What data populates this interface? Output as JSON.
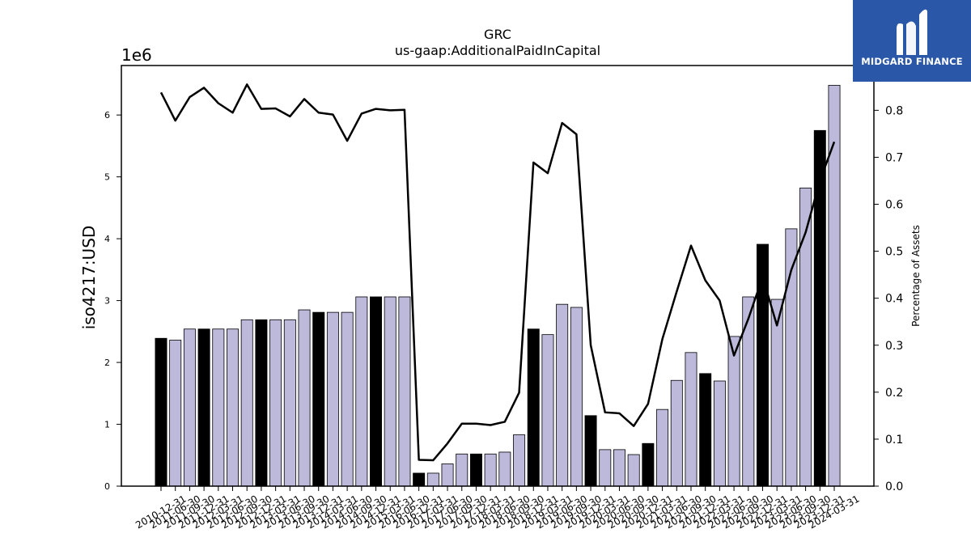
{
  "chart_data": {
    "type": "bar",
    "title": "GRC",
    "subtitle": "us-gaap:AdditionalPaidInCapital",
    "ylabel": "iso4217:USD",
    "y2label": "Percentage of Assets",
    "y_offset_label": "1e6",
    "ylim": [
      0,
      6800000
    ],
    "y2lim": [
      0,
      0.8953
    ],
    "y_ticks": [
      0,
      1,
      2,
      3,
      4,
      5,
      6
    ],
    "y2_ticks": [
      "0.0",
      "0.1",
      "0.2",
      "0.3",
      "0.4",
      "0.5",
      "0.6",
      "0.7",
      "0.8"
    ],
    "categories": [
      "2010-12-31",
      "2011-06-30",
      "2011-09-30",
      "2011-12-31",
      "2012-03-31",
      "2012-06-30",
      "2012-09-30",
      "2012-12-31",
      "2013-03-31",
      "2013-06-30",
      "2013-09-30",
      "2013-12-31",
      "2014-03-31",
      "2014-06-30",
      "2014-09-30",
      "2014-12-31",
      "2015-03-31",
      "2016-06-30",
      "2016-12-31",
      "2017-03-31",
      "2017-06-30",
      "2017-09-30",
      "2017-12-31",
      "2018-03-31",
      "2018-06-30",
      "2018-09-30",
      "2018-12-31",
      "2019-03-31",
      "2019-06-30",
      "2019-09-30",
      "2019-12-31",
      "2020-03-31",
      "2020-06-30",
      "2020-09-30",
      "2020-12-31",
      "2021-03-31",
      "2021-06-30",
      "2021-09-30",
      "2021-12-31",
      "2022-03-31",
      "2022-06-30",
      "2022-09-30",
      "2022-12-31",
      "2023-03-31",
      "2023-06-30",
      "2023-09-30",
      "2023-12-31",
      "2024-03-31"
    ],
    "series": [
      {
        "type": "bar",
        "values": [
          2390000,
          2360000,
          2540000,
          2540000,
          2540000,
          2540000,
          2690000,
          2690000,
          2690000,
          2690000,
          2850000,
          2810000,
          2810000,
          2810000,
          3060000,
          3060000,
          3060000,
          3060000,
          210000,
          210000,
          360000,
          520000,
          520000,
          520000,
          550000,
          830000,
          2540000,
          2450000,
          2940000,
          2890000,
          1140000,
          590000,
          590000,
          510000,
          690000,
          1240000,
          1710000,
          2160000,
          1820000,
          1700000,
          2420000,
          3060000,
          3910000,
          3020000,
          4160000,
          4820000,
          5750000,
          6480000
        ],
        "highlight": [
          true,
          false,
          false,
          true,
          false,
          false,
          false,
          true,
          false,
          false,
          false,
          true,
          false,
          false,
          false,
          true,
          false,
          false,
          true,
          false,
          false,
          false,
          true,
          false,
          false,
          false,
          true,
          false,
          false,
          false,
          true,
          false,
          false,
          false,
          true,
          false,
          false,
          false,
          true,
          false,
          false,
          false,
          true,
          false,
          false,
          false,
          true,
          false
        ],
        "color": "#bcb9da",
        "highlight_color": "#000000"
      },
      {
        "type": "line",
        "axis": "right",
        "values": [
          0.838,
          0.778,
          0.828,
          0.848,
          0.815,
          0.795,
          0.855,
          0.803,
          0.804,
          0.787,
          0.824,
          0.795,
          0.791,
          0.735,
          0.793,
          0.803,
          0.8,
          0.801,
          0.056,
          0.055,
          0.091,
          0.133,
          0.133,
          0.13,
          0.137,
          0.199,
          0.689,
          0.666,
          0.773,
          0.749,
          0.3,
          0.157,
          0.155,
          0.128,
          0.175,
          0.313,
          0.414,
          0.512,
          0.438,
          0.395,
          0.278,
          0.356,
          0.445,
          0.342,
          0.46,
          0.54,
          0.65,
          0.733
        ],
        "color": "#000000"
      }
    ]
  },
  "logo": {
    "text": "MIDGARD FINANCE",
    "icon": "midgard-logo-icon"
  }
}
